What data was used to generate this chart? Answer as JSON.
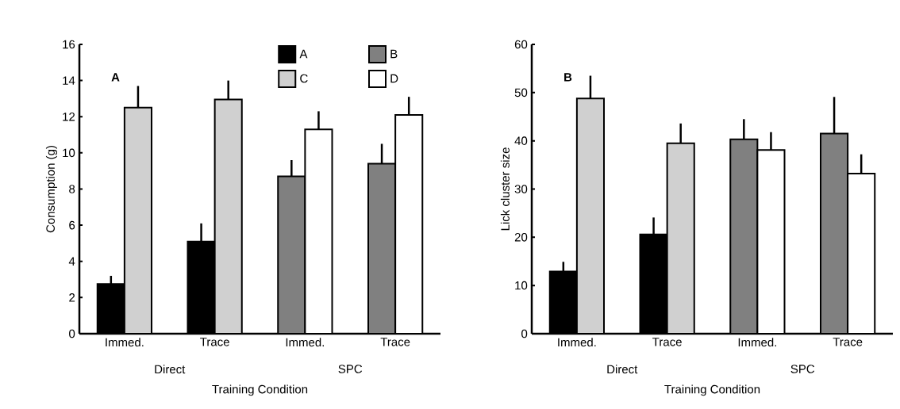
{
  "chart_data": [
    {
      "type": "bar",
      "title": "A",
      "xlabel": "Training Condition",
      "ylabel": "Consumption (g)",
      "categories": [
        "Immed.",
        "Trace",
        "Immed.",
        "Trace"
      ],
      "series": [
        {
          "name": "A",
          "color": "#000000",
          "values": [
            2.75,
            5.1,
            null,
            null
          ],
          "errors": [
            [
              2.75,
              3.2
            ],
            [
              5.1,
              6.1
            ],
            null,
            null
          ]
        },
        {
          "name": "B",
          "color": "#808080",
          "values": [
            null,
            null,
            8.7,
            9.4
          ],
          "errors": [
            null,
            null,
            [
              8.7,
              9.6
            ],
            [
              9.4,
              10.5
            ]
          ]
        },
        {
          "name": "C",
          "color": "#d0d0d0",
          "values": [
            12.5,
            12.95,
            null,
            null
          ],
          "errors": [
            [
              12.5,
              13.7
            ],
            [
              12.95,
              14.0
            ],
            null,
            null
          ]
        },
        {
          "name": "D",
          "color": "#ffffff",
          "values": [
            null,
            null,
            11.3,
            12.1
          ],
          "errors": [
            null,
            null,
            [
              11.3,
              12.3
            ],
            [
              12.1,
              13.1
            ]
          ]
        }
      ],
      "ylim": [
        0,
        16
      ],
      "yticks": [
        0,
        2,
        4,
        6,
        8,
        10,
        12,
        14,
        16
      ],
      "legend": "top right",
      "grid": false,
      "annotations": [
        "Direct",
        "SPC"
      ]
    },
    {
      "type": "bar",
      "title": "B",
      "xlabel": "Training Condition",
      "ylabel": "Lick cluster size",
      "categories": [
        "Immed.",
        "Trace",
        "Immed.",
        "Trace"
      ],
      "series": [
        {
          "color": "#000000",
          "values": [
            12.9,
            20.6,
            null,
            null
          ],
          "errors": [
            [
              12.9,
              14.9
            ],
            [
              20.6,
              24.1
            ],
            null,
            null
          ]
        },
        {
          "color": "#808080",
          "values": [
            null,
            null,
            40.3,
            41.5
          ],
          "errors": [
            null,
            null,
            [
              40.3,
              44.5
            ],
            [
              41.5,
              49.1
            ]
          ]
        },
        {
          "color": "#d0d0d0",
          "values": [
            48.8,
            39.5,
            null,
            null
          ],
          "errors": [
            [
              48.8,
              53.5
            ],
            [
              39.5,
              43.6
            ],
            null,
            null
          ]
        },
        {
          "color": "#ffffff",
          "values": [
            null,
            null,
            38.1,
            33.2
          ],
          "errors": [
            null,
            null,
            [
              38.1,
              41.8
            ],
            [
              33.2,
              37.2
            ]
          ]
        }
      ],
      "ylim": [
        0,
        60
      ],
      "yticks": [
        0,
        10,
        20,
        30,
        40,
        50,
        60
      ],
      "grid": false,
      "annotations": [
        "Direct",
        "SPC"
      ]
    }
  ]
}
